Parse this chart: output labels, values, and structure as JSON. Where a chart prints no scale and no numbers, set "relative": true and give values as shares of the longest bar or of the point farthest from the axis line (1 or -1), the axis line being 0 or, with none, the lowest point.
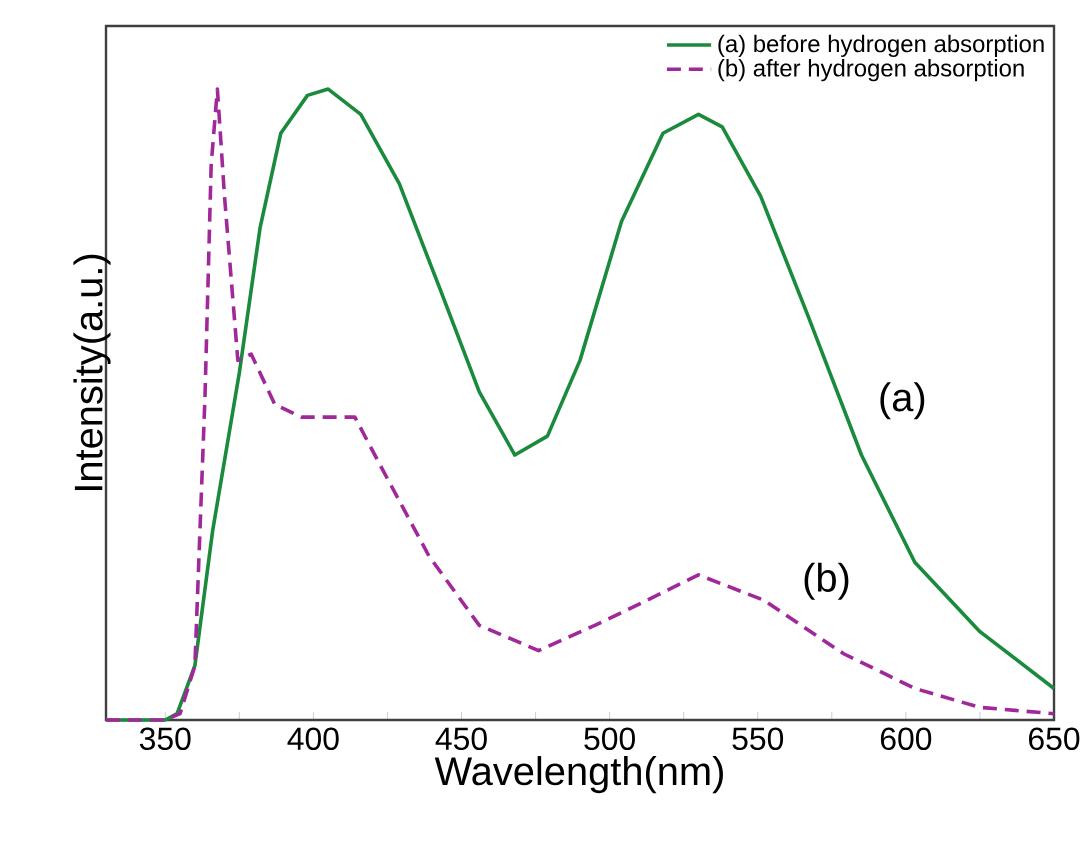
{
  "chart_data": {
    "type": "line",
    "xlabel": "Wavelength(nm)",
    "ylabel": "Intensity(a.u.)",
    "relative": true,
    "tick_labels": "x",
    "legend": "top right",
    "xlim": [
      330,
      650
    ],
    "xticks": [
      350,
      {
        "value": 375,
        "label": null
      },
      400,
      {
        "value": 425,
        "label": null
      },
      450,
      {
        "value": 475,
        "label": null
      },
      500,
      {
        "value": 525,
        "label": null
      },
      550,
      {
        "value": 575,
        "label": null
      },
      600,
      {
        "value": 625,
        "label": null
      },
      650
    ],
    "series": [
      {
        "name": "(a) before hydrogen absorption",
        "color": "#1a8a3c",
        "line_style": "solid",
        "x": [
          330,
          350,
          354,
          360,
          366,
          375,
          382,
          389,
          398,
          405,
          416,
          429,
          443,
          456,
          468,
          479,
          490,
          504,
          518,
          530,
          538,
          551,
          567,
          585,
          603,
          625,
          650
        ],
        "values": [
          0,
          0,
          0.01,
          0.086,
          0.3,
          0.55,
          0.78,
          0.93,
          0.99,
          1.0,
          0.96,
          0.85,
          0.68,
          0.52,
          0.42,
          0.45,
          0.57,
          0.79,
          0.93,
          0.96,
          0.94,
          0.83,
          0.64,
          0.42,
          0.25,
          0.14,
          0.05
        ]
      },
      {
        "name": "(b) after hydrogen absorption",
        "color": "#a0289a",
        "line_style": "dashed",
        "x": [
          330,
          350,
          355,
          360,
          363.4,
          365.5,
          367.6,
          370,
          374.5,
          379,
          387,
          396,
          414,
          423,
          439,
          456,
          476,
          495,
          504,
          530,
          552,
          579,
          603,
          625,
          650
        ],
        "values": [
          0,
          0,
          0.01,
          0.086,
          0.51,
          0.88,
          1.0,
          0.83,
          0.57,
          0.58,
          0.5,
          0.48,
          0.48,
          0.4,
          0.26,
          0.15,
          0.11,
          0.15,
          0.17,
          0.23,
          0.19,
          0.105,
          0.05,
          0.02,
          0.01
        ]
      }
    ],
    "annotations": [
      "(a)",
      "(b)"
    ]
  }
}
